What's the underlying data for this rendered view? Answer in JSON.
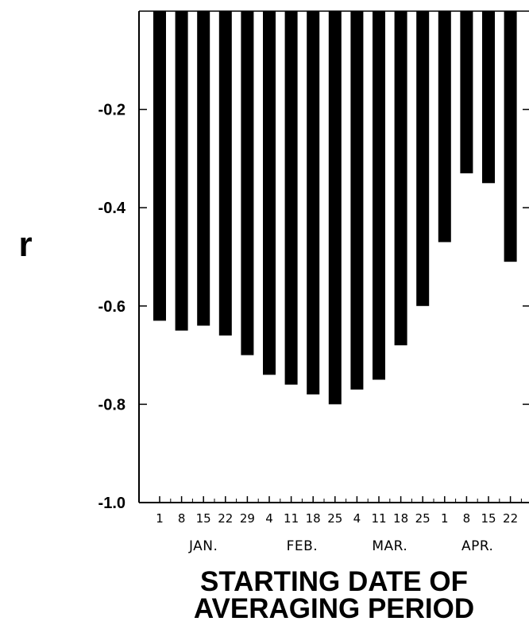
{
  "chart_data": {
    "type": "bar",
    "title": "",
    "ylabel": "r",
    "xlabel_lines": [
      "STARTING DATE OF",
      "AVERAGING PERIOD"
    ],
    "ylim": [
      -1.0,
      0.0
    ],
    "yticks": [
      -0.2,
      -0.4,
      -0.6,
      -0.8,
      -1.0
    ],
    "ytick_labels": [
      "-0.2",
      "-0.4",
      "-0.6",
      "-0.8",
      "-1.0"
    ],
    "categories": [
      "1",
      "8",
      "15",
      "22",
      "29",
      "4",
      "11",
      "18",
      "25",
      "4",
      "11",
      "18",
      "25",
      "1",
      "8",
      "15",
      "22"
    ],
    "months": [
      {
        "label": "JAN.",
        "start": 0,
        "end": 4
      },
      {
        "label": "FEB.",
        "start": 5,
        "end": 8
      },
      {
        "label": "MAR.",
        "start": 9,
        "end": 12
      },
      {
        "label": "APR.",
        "start": 13,
        "end": 16
      }
    ],
    "values": [
      -0.63,
      -0.65,
      -0.64,
      -0.66,
      -0.7,
      -0.74,
      -0.76,
      -0.78,
      -0.8,
      -0.77,
      -0.75,
      -0.68,
      -0.6,
      -0.47,
      -0.33,
      -0.35,
      -0.51
    ],
    "bar_color": "#000000",
    "grid": false
  }
}
